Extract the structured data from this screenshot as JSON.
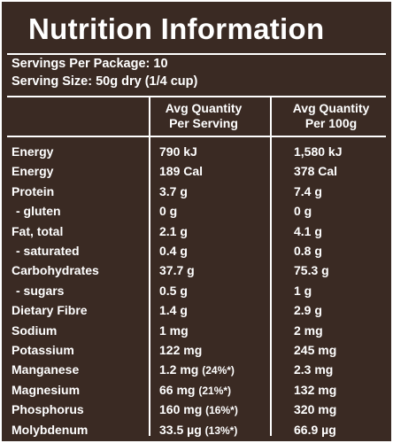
{
  "title": "Nutrition Information",
  "servings_per_package": "Servings Per Package: 10",
  "serving_size": "Serving Size: 50g dry (1/4 cup)",
  "columns": {
    "per_serving_line1": "Avg Quantity",
    "per_serving_line2": "Per Serving",
    "per_100g_line1": "Avg Quantity",
    "per_100g_line2": "Per 100g"
  },
  "rows": [
    {
      "name": "Energy",
      "serving": "790 kJ",
      "per100": "1,580 kJ"
    },
    {
      "name": "Energy",
      "serving": "189 Cal",
      "per100": "378 Cal"
    },
    {
      "name": "Protein",
      "serving": "3.7 g",
      "per100": "7.4 g"
    },
    {
      "name": " - gluten",
      "serving": "0 g",
      "per100": "0 g"
    },
    {
      "name": "Fat, total",
      "serving": "2.1 g",
      "per100": "4.1 g"
    },
    {
      "name": " - saturated",
      "serving": "0.4 g",
      "per100": "0.8 g"
    },
    {
      "name": "Carbohydrates",
      "serving": "37.7 g",
      "per100": "75.3 g"
    },
    {
      "name": " - sugars",
      "serving": "0.5 g",
      "per100": "1 g"
    },
    {
      "name": "Dietary Fibre",
      "serving": "1.4 g",
      "per100": "2.9 g"
    },
    {
      "name": "Sodium",
      "serving": "1 mg",
      "per100": "2 mg"
    },
    {
      "name": "Potassium",
      "serving": "122 mg",
      "per100": "245 mg"
    },
    {
      "name": "Manganese",
      "serving": "1.2 mg",
      "serving_pct": "(24%*)",
      "per100": "2.3 mg"
    },
    {
      "name": "Magnesium",
      "serving": "66 mg",
      "serving_pct": "(21%*)",
      "per100": "132 mg"
    },
    {
      "name": "Phosphorus",
      "serving": "160 mg",
      "serving_pct": "(16%*)",
      "per100": "320 mg"
    },
    {
      "name": "Molybdenum",
      "serving": "33.5 µg",
      "serving_pct": "(13%*)",
      "per100": "66.9 µg"
    }
  ],
  "colors": {
    "background": "#3a2a23",
    "text": "#ffffff"
  }
}
